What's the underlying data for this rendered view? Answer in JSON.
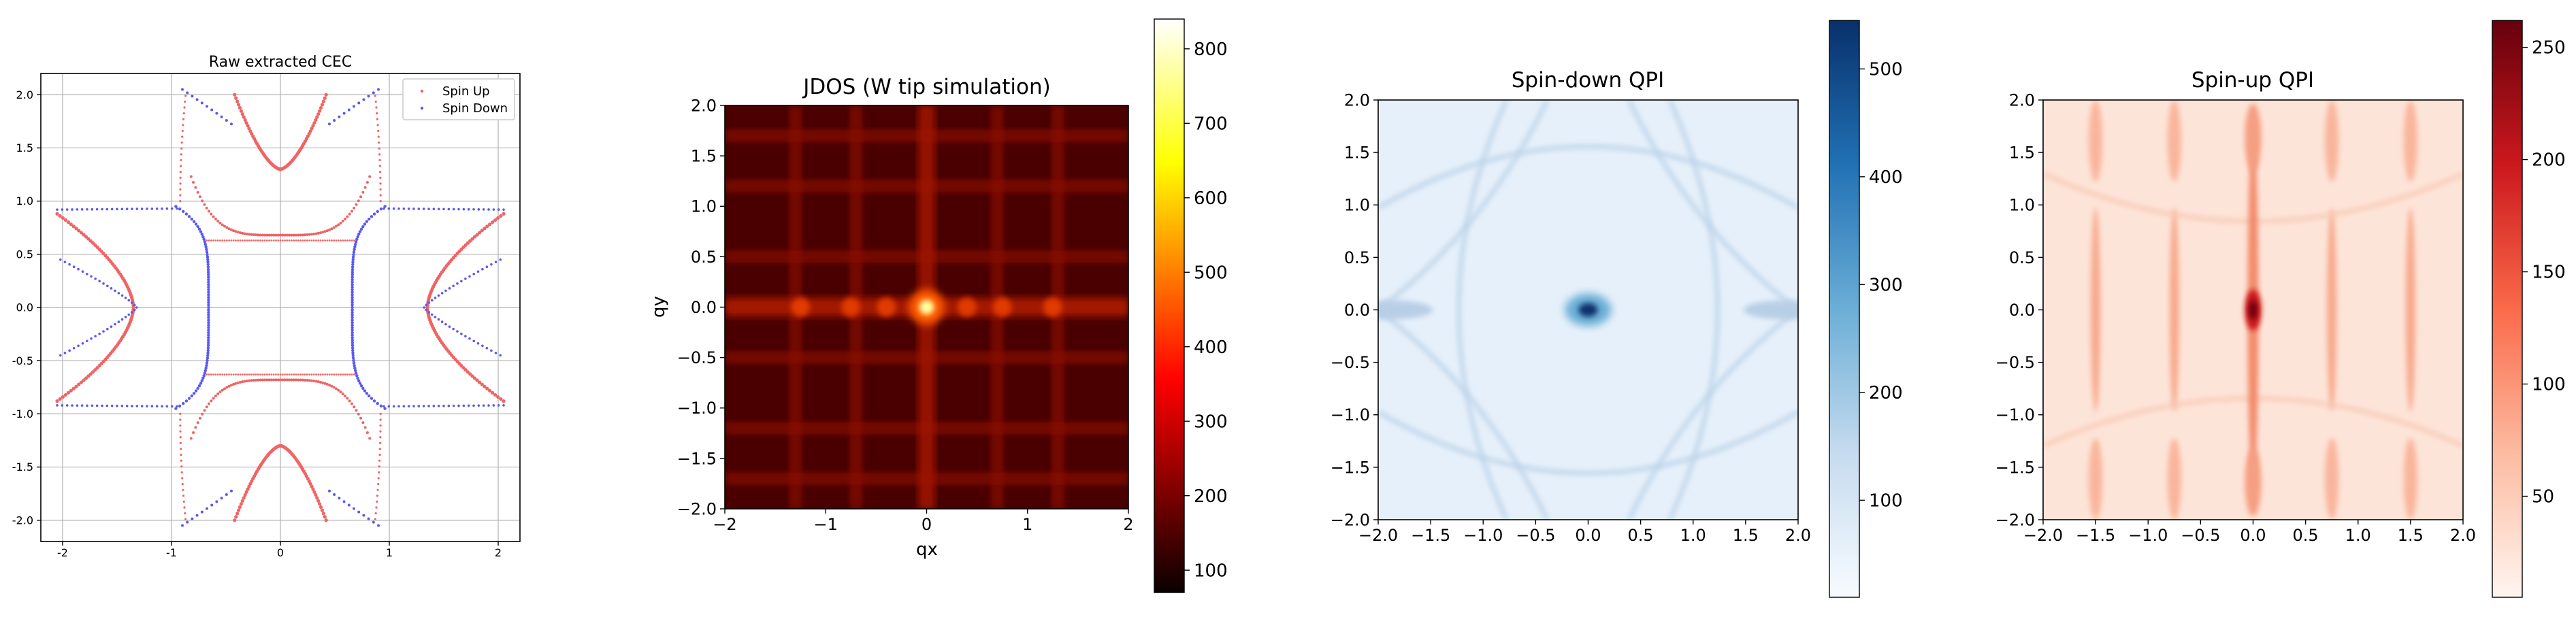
{
  "chart_data": [
    {
      "type": "scatter",
      "title": "Raw extracted CEC",
      "xlabel": "",
      "ylabel": "",
      "xlim": [
        -2.2,
        2.2
      ],
      "ylim": [
        -2.2,
        2.2
      ],
      "xticks": [
        "-2",
        "-1",
        "0",
        "1",
        "2"
      ],
      "yticks": [
        "-2.0",
        "-1.5",
        "-1.0",
        "-0.5",
        "0.0",
        "0.5",
        "1.0",
        "1.5",
        "2.0"
      ],
      "grid": true,
      "legend_position": "upper right",
      "series": [
        {
          "name": "Spin Up",
          "color": "#f06464",
          "contours": [
            {
              "kind": "horizontal_parabola",
              "vertex": [
                0,
                1.3
              ],
              "half_width": 0.42,
              "extent": 2.0
            },
            {
              "kind": "horizontal_parabola",
              "vertex": [
                0,
                -1.3
              ],
              "half_width": 0.42,
              "extent": -2.0
            },
            {
              "kind": "vertical_parabola",
              "vertex": [
                1.35,
                0
              ],
              "half_height": 0.88,
              "extent": 2.0
            },
            {
              "kind": "vertical_parabola",
              "vertex": [
                -1.35,
                0
              ],
              "half_height": 0.88,
              "extent": -2.0
            },
            {
              "kind": "pocket",
              "center": [
                0,
                0.7
              ],
              "orientation": "top"
            },
            {
              "kind": "pocket",
              "center": [
                0,
                -0.7
              ],
              "orientation": "bottom"
            },
            {
              "kind": "side_arc",
              "x": -0.95,
              "orientation": "top"
            },
            {
              "kind": "side_arc",
              "x": 0.95,
              "orientation": "top"
            }
          ]
        },
        {
          "name": "Spin Down",
          "color": "#5a5af0",
          "contours": [
            {
              "kind": "outer_hyperbola",
              "vertex": [
                0.65,
                0
              ],
              "orientation": "right"
            },
            {
              "kind": "outer_hyperbola",
              "vertex": [
                -0.65,
                0
              ],
              "orientation": "left"
            },
            {
              "kind": "outer_hyperbola",
              "vertex": [
                0,
                0.6
              ],
              "orientation": "top"
            },
            {
              "kind": "outer_hyperbola",
              "vertex": [
                0,
                -0.6
              ],
              "orientation": "bottom"
            },
            {
              "kind": "inner_branch",
              "vertex": [
                1.32,
                0
              ],
              "orientation": "right"
            },
            {
              "kind": "inner_branch",
              "vertex": [
                -1.32,
                0
              ],
              "orientation": "left"
            }
          ]
        }
      ]
    },
    {
      "type": "heatmap",
      "title": "JDOS (W tip simulation)",
      "xlabel": "qx",
      "ylabel": "qy",
      "xlim": [
        -2,
        2
      ],
      "ylim": [
        -2,
        2
      ],
      "xticks": [
        "−2",
        "−1",
        "0",
        "1",
        "2"
      ],
      "yticks": [
        "−2.0",
        "−1.5",
        "−1.0",
        "−0.5",
        "0.0",
        "0.5",
        "1.0",
        "1.5",
        "2.0"
      ],
      "colormap": "hot",
      "colorbar_range": [
        70,
        840
      ],
      "colorbar_ticks": [
        "100",
        "200",
        "300",
        "400",
        "500",
        "600",
        "700",
        "800"
      ],
      "features": [
        {
          "kind": "central_peak",
          "center": [
            0,
            0
          ],
          "value": 840
        },
        {
          "kind": "satellite_peaks",
          "positions": [
            [
              -1.25,
              0
            ],
            [
              -0.75,
              0
            ],
            [
              -0.4,
              0
            ],
            [
              0.4,
              0
            ],
            [
              0.75,
              0
            ],
            [
              1.25,
              0
            ]
          ],
          "value": 320
        },
        {
          "kind": "grid_lines",
          "qx": [
            -1.3,
            -0.7,
            0,
            0.7,
            1.3
          ],
          "qy": [
            -1.7,
            -1.2,
            -0.5,
            0,
            0.5,
            1.2,
            1.7
          ],
          "value": 200
        }
      ]
    },
    {
      "type": "heatmap",
      "title": "Spin-down QPI",
      "xlabel": "",
      "ylabel": "",
      "xlim": [
        -2,
        2
      ],
      "ylim": [
        -2,
        2
      ],
      "xticks": [
        "−2.0",
        "−1.5",
        "−1.0",
        "−0.5",
        "0.0",
        "0.5",
        "1.0",
        "1.5",
        "2.0"
      ],
      "yticks": [
        "−2.0",
        "−1.5",
        "−1.0",
        "−0.5",
        "0.0",
        "0.5",
        "1.0",
        "1.5",
        "2.0"
      ],
      "colormap": "Blues",
      "colorbar_range": [
        10,
        545
      ],
      "colorbar_ticks": [
        "100",
        "200",
        "300",
        "400",
        "500"
      ],
      "features": [
        {
          "kind": "central_peak",
          "center": [
            0,
            0
          ],
          "value": 545
        },
        {
          "kind": "arcs",
          "description": "faint lens-shaped arcs around center and near edges",
          "value": 80
        }
      ]
    },
    {
      "type": "heatmap",
      "title": "Spin-up QPI",
      "xlabel": "",
      "ylabel": "",
      "xlim": [
        -2,
        2
      ],
      "ylim": [
        -2,
        2
      ],
      "xticks": [
        "−2.0",
        "−1.5",
        "−1.0",
        "−0.5",
        "0.0",
        "0.5",
        "1.0",
        "1.5",
        "2.0"
      ],
      "yticks": [
        "−2.0",
        "−1.5",
        "−1.0",
        "−0.5",
        "0.0",
        "0.5",
        "1.0",
        "1.5",
        "2.0"
      ],
      "colormap": "Reds",
      "colorbar_range": [
        5,
        262
      ],
      "colorbar_ticks": [
        "50",
        "100",
        "150",
        "200",
        "250"
      ],
      "features": [
        {
          "kind": "central_streak",
          "center": [
            0,
            0
          ],
          "value": 262
        },
        {
          "kind": "vertical_streaks",
          "qx": [
            -1.5,
            -0.75,
            0.75,
            1.5
          ],
          "value": 90
        }
      ]
    }
  ]
}
